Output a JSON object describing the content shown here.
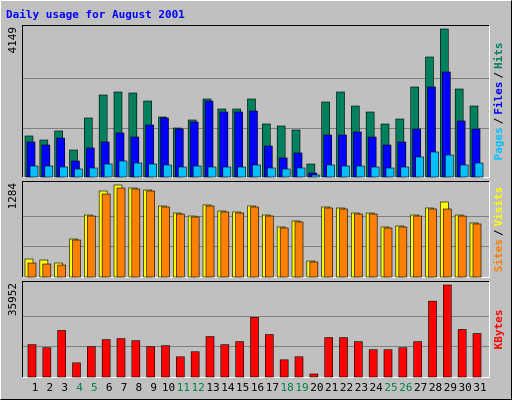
{
  "chart_data": [
    {
      "type": "bar",
      "title": "Daily usage for August 2001",
      "title_color": "#0000ff",
      "ylim": [
        0,
        4149
      ],
      "yticks": [
        4149
      ],
      "grid_divisions": 3,
      "legend_separator": "/",
      "series": [
        {
          "name": "Hits",
          "color": "#00805c",
          "values": [
            1150,
            1037,
            1290,
            757,
            1654,
            2299,
            2383,
            2355,
            2130,
            1682,
            1374,
            1598,
            2187,
            1906,
            1906,
            2187,
            1486,
            1430,
            1318,
            364,
            2102,
            2383,
            1990,
            1822,
            1486,
            1626,
            2523,
            3364,
            4149,
            2467,
            1990
          ]
        },
        {
          "name": "Files",
          "color": "#0000ff",
          "values": [
            981,
            897,
            1093,
            449,
            813,
            981,
            1234,
            1121,
            1458,
            1654,
            1346,
            1542,
            2130,
            1822,
            1822,
            1850,
            869,
            533,
            673,
            112,
            1177,
            1177,
            1262,
            1121,
            897,
            981,
            1346,
            2523,
            2944,
            1570,
            1346
          ]
        },
        {
          "name": "Pages",
          "color": "#00c0ff",
          "values": [
            308,
            308,
            280,
            224,
            252,
            364,
            449,
            392,
            364,
            336,
            280,
            308,
            280,
            280,
            280,
            336,
            252,
            224,
            252,
            56,
            336,
            308,
            308,
            280,
            252,
            280,
            561,
            701,
            617,
            336,
            392
          ]
        }
      ]
    },
    {
      "type": "bar",
      "ylim": [
        0,
        1284
      ],
      "yticks": [
        1284
      ],
      "grid_divisions": 3,
      "series": [
        {
          "name": "Visits",
          "color": "#ffff00",
          "values": [
            251,
            237,
            195,
            530,
            865,
            1200,
            1284,
            1242,
            1214,
            991,
            893,
            851,
            1005,
            921,
            907,
            991,
            865,
            698,
            782,
            223,
            977,
            963,
            893,
            893,
            698,
            712,
            865,
            963,
            1047,
            865,
            754
          ]
        },
        {
          "name": "Sites",
          "color": "#ff8000",
          "values": [
            195,
            181,
            167,
            516,
            851,
            1158,
            1242,
            1228,
            1200,
            977,
            879,
            837,
            991,
            907,
            893,
            977,
            851,
            684,
            768,
            209,
            963,
            949,
            879,
            879,
            684,
            698,
            851,
            949,
            949,
            851,
            740
          ]
        }
      ]
    },
    {
      "type": "bar",
      "ylim": [
        0,
        35952
      ],
      "yticks": [
        35952
      ],
      "grid_divisions": 3,
      "categories": [
        "1",
        "2",
        "3",
        "4",
        "5",
        "6",
        "7",
        "8",
        "9",
        "10",
        "11",
        "12",
        "13",
        "14",
        "15",
        "16",
        "17",
        "18",
        "19",
        "20",
        "21",
        "22",
        "23",
        "24",
        "25",
        "26",
        "27",
        "28",
        "29",
        "30",
        "31"
      ],
      "highlighted": [
        3,
        4,
        10,
        11,
        17,
        18,
        24,
        25
      ],
      "highlight_color": "#00804a",
      "series": [
        {
          "name": "KBytes",
          "color": "#ff0000",
          "values": [
            12643,
            11457,
            18173,
            5531,
            11852,
            14618,
            15013,
            14223,
            11852,
            12247,
            7901,
            9877,
            15803,
            12643,
            13828,
            23310,
            16593,
            6716,
            7901,
            1185,
            15408,
            15408,
            13828,
            10667,
            10667,
            11457,
            13828,
            29631,
            35952,
            18569,
            16988
          ]
        }
      ]
    }
  ]
}
